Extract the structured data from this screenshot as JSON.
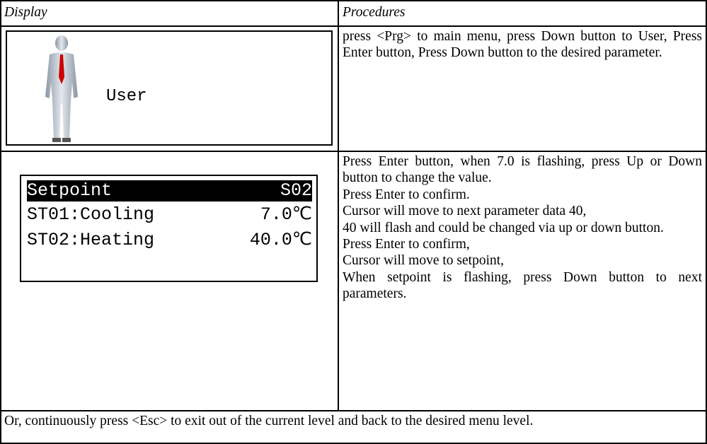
{
  "table": {
    "header": [
      "Display",
      "Procedures"
    ],
    "rows": [
      {
        "display": {
          "label": "User"
        },
        "procedure": [
          "press <Prg> to main menu, press Down button to User, Press Enter button, Press Down button to the desired parameter."
        ]
      },
      {
        "display": {
          "lcd": {
            "title": "Setpoint",
            "code": "S02",
            "lines": [
              [
                "ST01:Cooling",
                "7.0℃"
              ],
              [
                "ST02:Heating",
                "40.0℃"
              ]
            ]
          }
        },
        "procedure": [
          "Press Enter button, when 7.0 is flashing, press Up or Down button to change the value.",
          "Press Enter to confirm.",
          "Cursor will move to next parameter data 40,",
          "40 will flash and could be changed via up or down button.",
          "Press Enter to confirm,",
          "Cursor will move to setpoint,",
          "When setpoint is flashing, press Down button to next parameters."
        ]
      }
    ],
    "footer": "Or, continuously press <Esc> to exit out of the current level and back to the desired menu level."
  }
}
